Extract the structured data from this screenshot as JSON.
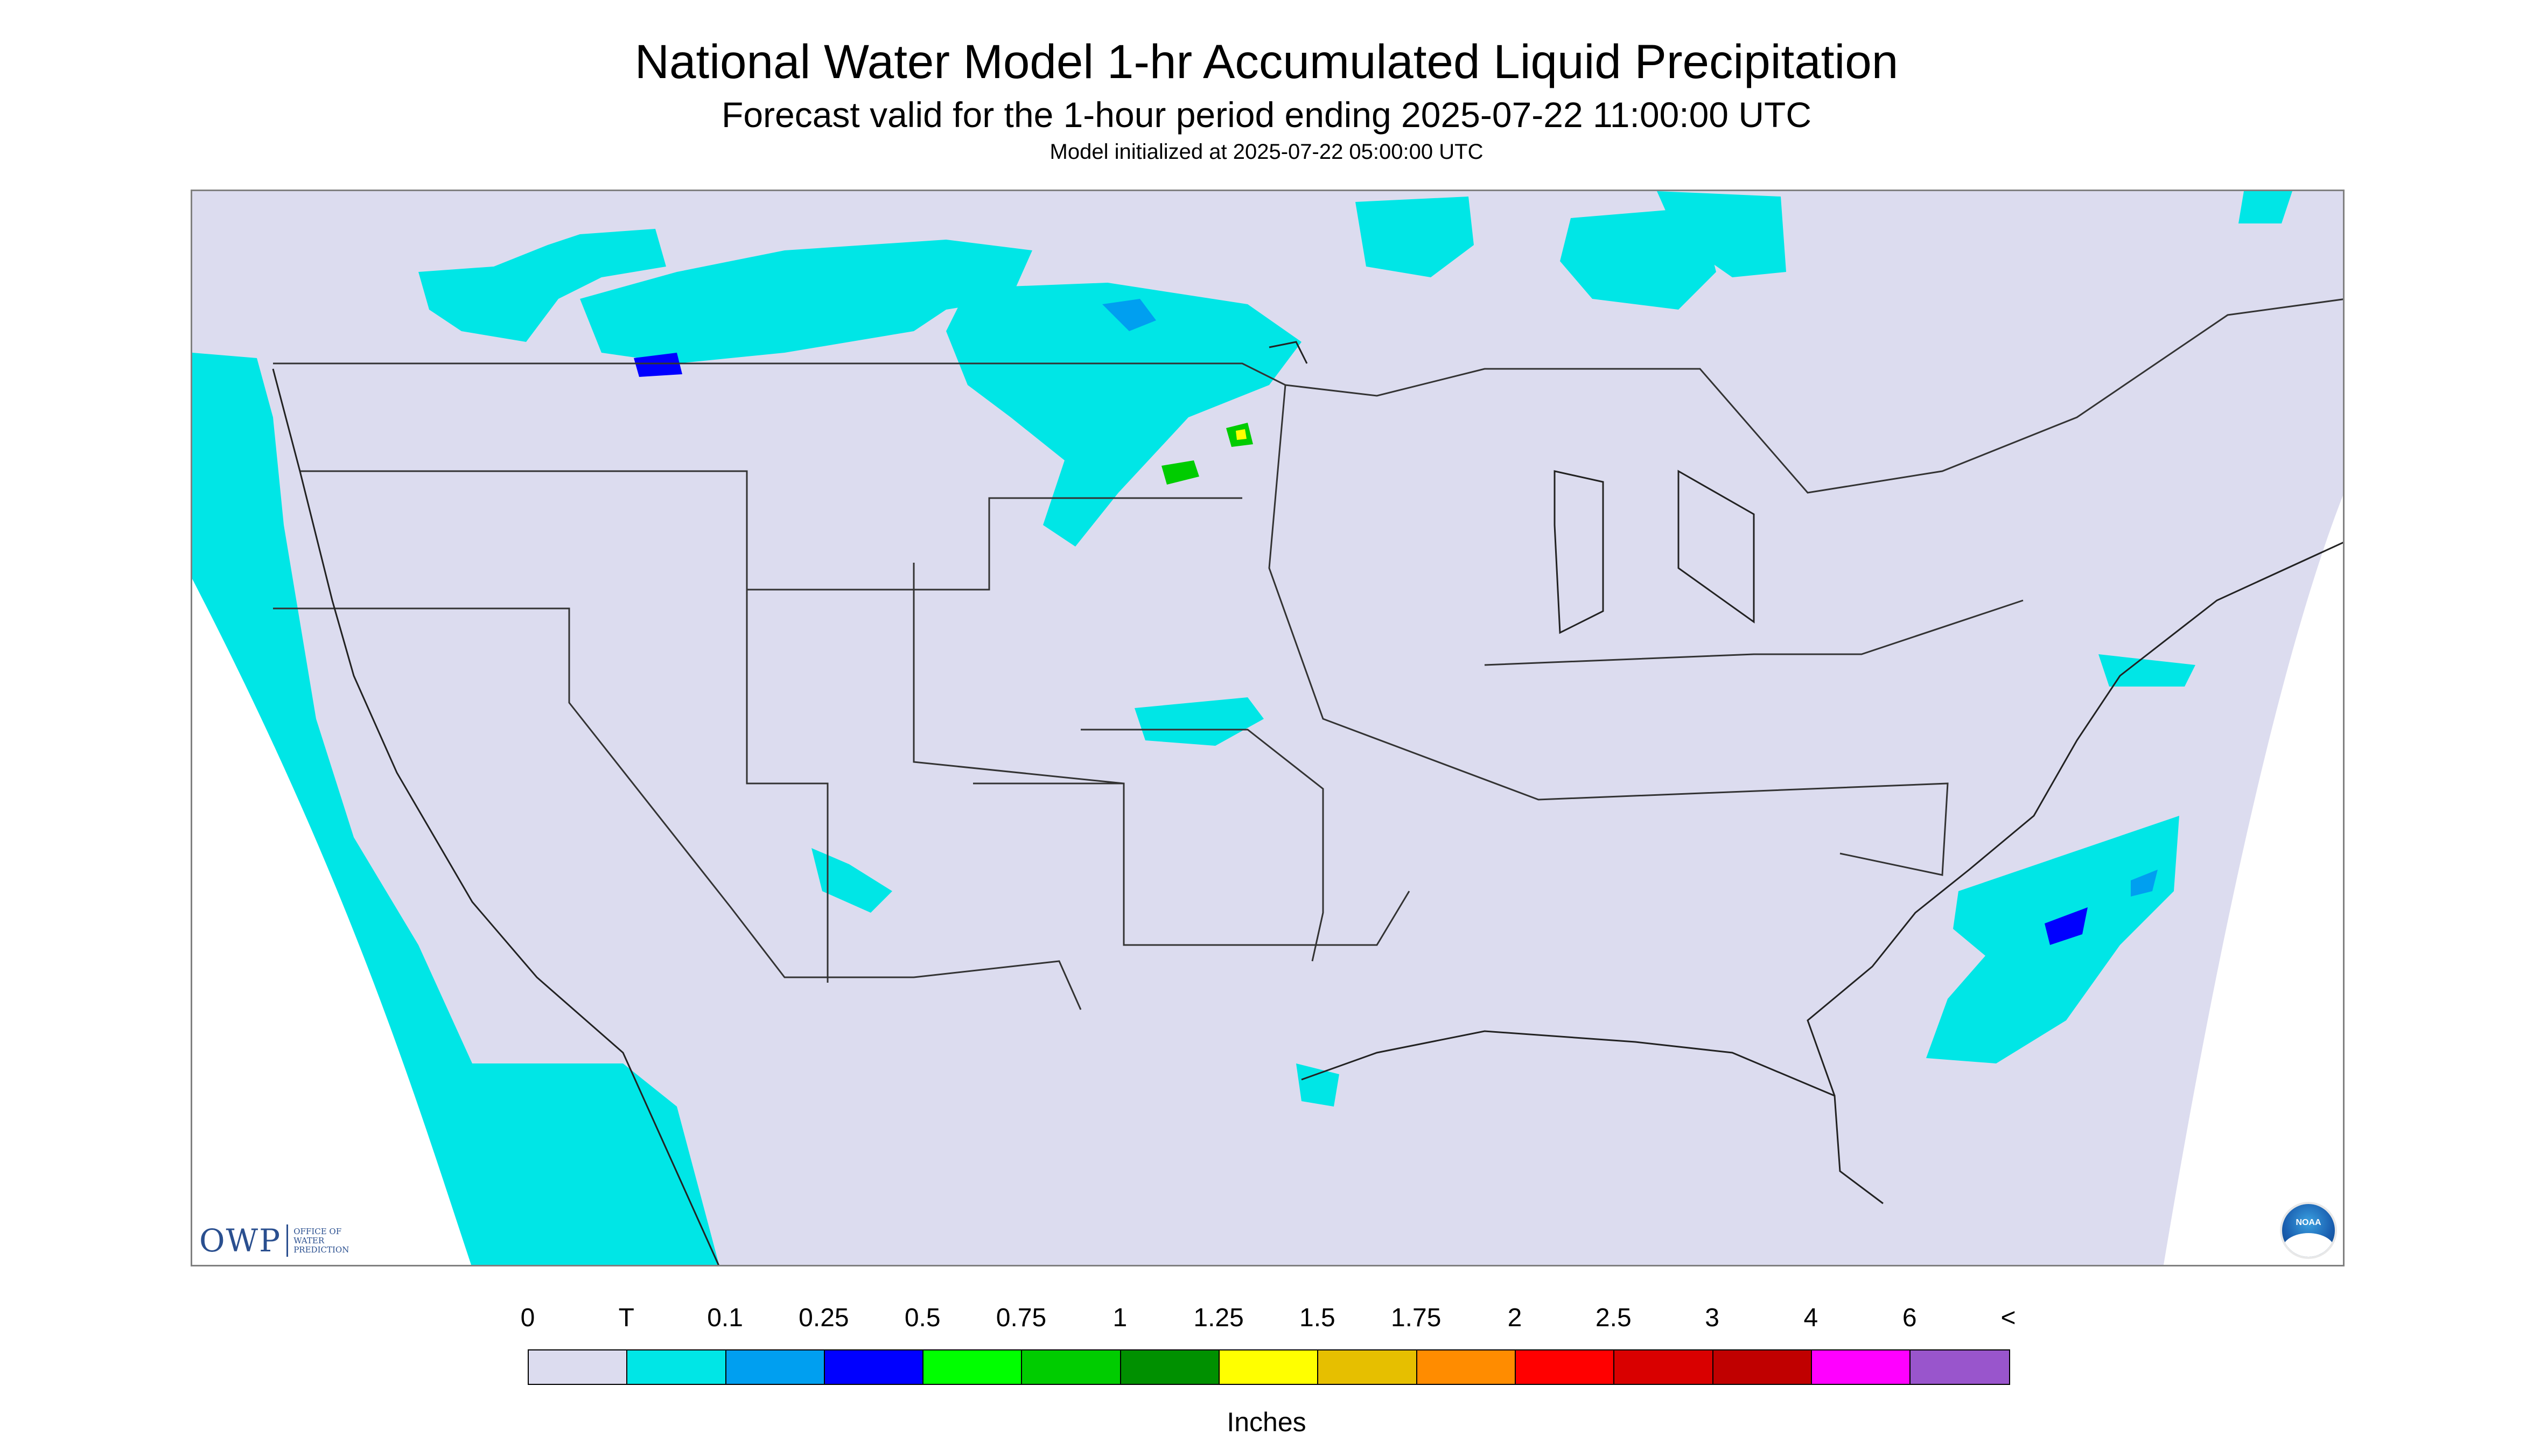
{
  "header": {
    "title": "National Water Model 1-hr Accumulated Liquid Precipitation",
    "subtitle": "Forecast valid for the 1-hour period ending 2025-07-22 11:00:00 UTC",
    "init": "Model initialized at 2025-07-22 05:00:00 UTC"
  },
  "logos": {
    "owp_mark": "OWP",
    "owp_line1": "OFFICE OF",
    "owp_line2": "WATER",
    "owp_line3": "PREDICTION",
    "noaa": "NOAA"
  },
  "legend": {
    "labels": [
      "0",
      "T",
      "0.1",
      "0.25",
      "0.5",
      "0.75",
      "1",
      "1.25",
      "1.5",
      "1.75",
      "2",
      "2.5",
      "3",
      "4",
      "6",
      "<"
    ],
    "colors": [
      "#dcdcef",
      "#00e6e6",
      "#009ff0",
      "#0000ff",
      "#00ff00",
      "#00cc00",
      "#009000",
      "#ffff00",
      "#e6bf00",
      "#ff8c00",
      "#ff0000",
      "#d90000",
      "#c00000",
      "#ff00ff",
      "#9955cc"
    ],
    "units": "Inches"
  },
  "map_colors": {
    "background": "#dcdcef",
    "trace": "#00e6e6",
    "light": "#009ff0",
    "moderate": "#0000ff",
    "green": "#00cc00",
    "yellow": "#ffff00",
    "border": "#333333"
  }
}
